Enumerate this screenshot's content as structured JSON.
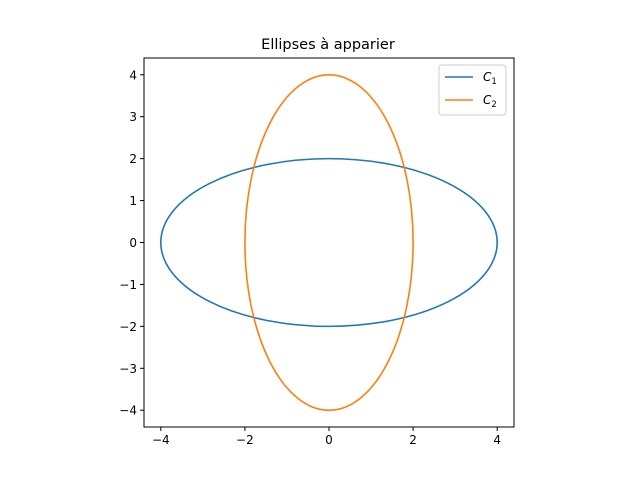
{
  "chart_data": {
    "type": "line",
    "title": "Ellipses à apparier",
    "xlabel": "",
    "ylabel": "",
    "xlim": [
      -4.4,
      4.4
    ],
    "ylim": [
      -4.4,
      4.4
    ],
    "x_ticks": [
      -4,
      -2,
      0,
      2,
      4
    ],
    "y_ticks": [
      -4,
      -3,
      -2,
      -1,
      0,
      1,
      2,
      3,
      4
    ],
    "x_tick_labels": [
      "−4",
      "−2",
      "0",
      "2",
      "4"
    ],
    "y_tick_labels": [
      "−4",
      "−3",
      "−2",
      "−1",
      "0",
      "1",
      "2",
      "3",
      "4"
    ],
    "grid": false,
    "legend_position": "upper right",
    "series": [
      {
        "name": "C1",
        "label_main": "C",
        "label_sub": "1",
        "color": "#1f77b4",
        "shape": "ellipse",
        "center": [
          0,
          0
        ],
        "semi_axis_x": 4,
        "semi_axis_y": 2
      },
      {
        "name": "C2",
        "label_main": "C",
        "label_sub": "2",
        "color": "#ff7f0e",
        "shape": "ellipse",
        "center": [
          0,
          0
        ],
        "semi_axis_x": 2,
        "semi_axis_y": 4
      }
    ]
  }
}
